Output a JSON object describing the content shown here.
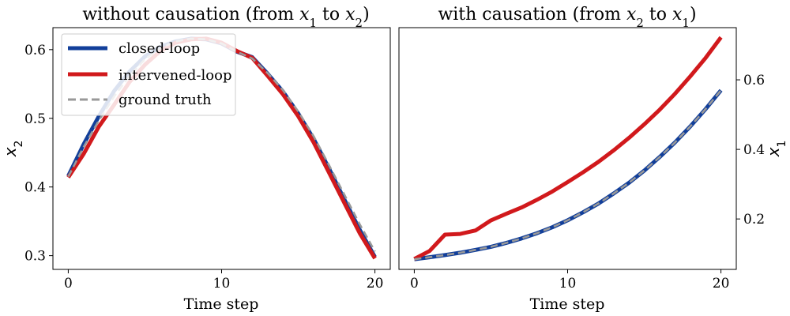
{
  "chart_data": [
    {
      "type": "line",
      "title": "without causation (from x1 to x2)",
      "title_parts": {
        "pre": "without causation (from ",
        "var1": "x",
        "sub1": "1",
        "mid": " to ",
        "var2": "x",
        "sub2": "2",
        "post": ")"
      },
      "xlabel": "Time step",
      "ylabel": "x2",
      "ylabel_parts": {
        "var": "x",
        "sub": "2"
      },
      "y_axis_side": "left",
      "xlim": [
        -1,
        21
      ],
      "ylim": [
        0.28,
        0.632
      ],
      "xticks": [
        0,
        10,
        20
      ],
      "yticks": [
        0.3,
        0.4,
        0.5,
        0.6
      ],
      "xtick_labels": [
        "0",
        "10",
        "20"
      ],
      "ytick_labels": [
        "0.3",
        "0.4",
        "0.5",
        "0.6"
      ],
      "grid": false,
      "legend": {
        "placement": "top-left"
      },
      "x": [
        0,
        1,
        2,
        3,
        4,
        5,
        6,
        7,
        8,
        9,
        10,
        11,
        12,
        13,
        14,
        15,
        16,
        17,
        18,
        19,
        20
      ],
      "series": [
        {
          "name": "closed-loop",
          "color": "#123f9a",
          "style": "solid",
          "values": [
            0.416,
            0.462,
            0.503,
            0.54,
            0.568,
            0.59,
            0.604,
            0.612,
            0.616,
            0.615,
            0.609,
            0.597,
            0.589,
            0.565,
            0.539,
            0.507,
            0.47,
            0.427,
            0.382,
            0.338,
            0.298
          ]
        },
        {
          "name": "intervened-loop",
          "color": "#d1191c",
          "style": "solid",
          "values": [
            0.414,
            0.448,
            0.488,
            0.52,
            0.553,
            0.578,
            0.598,
            0.61,
            0.615,
            0.616,
            0.61,
            0.598,
            0.588,
            0.562,
            0.535,
            0.503,
            0.465,
            0.421,
            0.377,
            0.333,
            0.296
          ]
        },
        {
          "name": "ground truth",
          "color": "#999999",
          "style": "dashed",
          "values": [
            0.415,
            0.458,
            0.497,
            0.532,
            0.562,
            0.586,
            0.602,
            0.612,
            0.616,
            0.615,
            0.609,
            0.597,
            0.587,
            0.566,
            0.541,
            0.51,
            0.474,
            0.432,
            0.389,
            0.346,
            0.306
          ]
        }
      ]
    },
    {
      "type": "line",
      "title": "with causation (from x2 to x1)",
      "title_parts": {
        "pre": "with causation (from ",
        "var1": "x",
        "sub1": "2",
        "mid": " to ",
        "var2": "x",
        "sub2": "1",
        "post": ")"
      },
      "xlabel": "Time step",
      "ylabel": "x1",
      "ylabel_parts": {
        "var": "x",
        "sub": "1"
      },
      "y_axis_side": "right",
      "xlim": [
        -1,
        21
      ],
      "ylim": [
        0.055,
        0.75
      ],
      "xticks": [
        0,
        10,
        20
      ],
      "yticks": [
        0.2,
        0.4,
        0.6
      ],
      "xtick_labels": [
        "0",
        "10",
        "20"
      ],
      "ytick_labels": [
        "0.2",
        "0.4",
        "0.6"
      ],
      "grid": false,
      "x": [
        0,
        1,
        2,
        3,
        4,
        5,
        6,
        7,
        8,
        9,
        10,
        11,
        12,
        13,
        14,
        15,
        16,
        17,
        18,
        19,
        20
      ],
      "series": [
        {
          "name": "closed-loop",
          "color": "#123f9a",
          "style": "solid",
          "values": [
            0.084,
            0.09,
            0.096,
            0.103,
            0.111,
            0.12,
            0.131,
            0.144,
            0.159,
            0.176,
            0.196,
            0.219,
            0.244,
            0.273,
            0.304,
            0.339,
            0.378,
            0.42,
            0.466,
            0.516,
            0.57
          ]
        },
        {
          "name": "intervened-loop",
          "color": "#d1191c",
          "style": "solid",
          "values": [
            0.085,
            0.108,
            0.155,
            0.157,
            0.167,
            0.196,
            0.215,
            0.233,
            0.255,
            0.279,
            0.306,
            0.334,
            0.364,
            0.397,
            0.433,
            0.472,
            0.514,
            0.56,
            0.61,
            0.663,
            0.722
          ]
        },
        {
          "name": "ground truth",
          "color": "#999999",
          "style": "dashed",
          "values": [
            0.084,
            0.09,
            0.096,
            0.103,
            0.111,
            0.12,
            0.131,
            0.144,
            0.159,
            0.176,
            0.196,
            0.219,
            0.244,
            0.273,
            0.304,
            0.339,
            0.378,
            0.42,
            0.466,
            0.516,
            0.57
          ]
        }
      ]
    }
  ]
}
